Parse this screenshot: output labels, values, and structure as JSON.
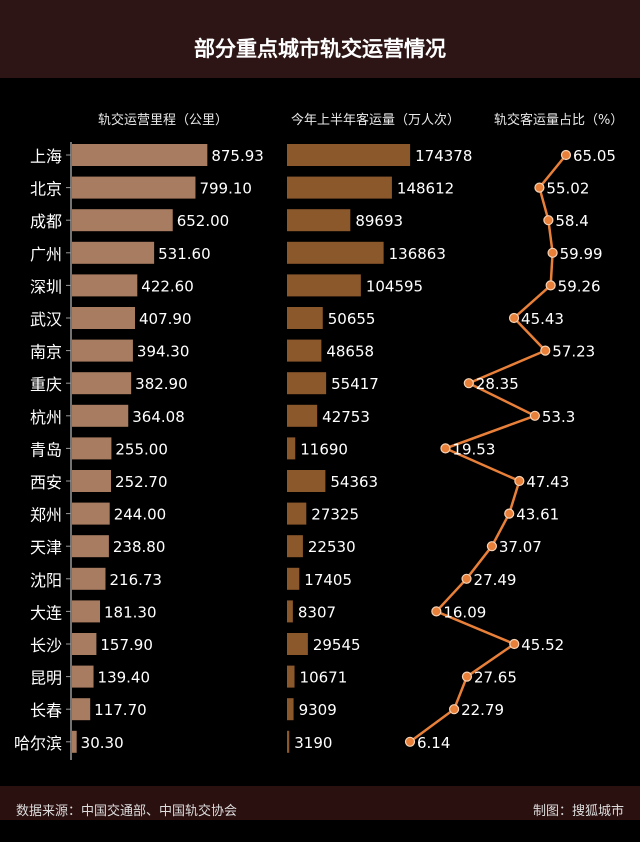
{
  "header": {
    "title": "部分重点城市轨交运营情况"
  },
  "footer": {
    "source": "数据来源：中国交通部、中国轨交协会",
    "credit": "制图：搜狐城市"
  },
  "colors": {
    "header_bg": "#2d1515",
    "mileage_bar": "#a87c60",
    "ridership_bar": "#8b582c",
    "share_line": "#e8803a"
  },
  "chart_data": [
    {
      "type": "bar",
      "orientation": "horizontal",
      "title": "轨交运营里程（公里）",
      "categories": [
        "上海",
        "北京",
        "成都",
        "广州",
        "深圳",
        "武汉",
        "南京",
        "重庆",
        "杭州",
        "青岛",
        "西安",
        "郑州",
        "天津",
        "沈阳",
        "大连",
        "长沙",
        "昆明",
        "长春",
        "哈尔滨"
      ],
      "values": [
        875.93,
        799.1,
        652.0,
        531.6,
        422.6,
        407.9,
        394.3,
        382.9,
        364.08,
        255.0,
        252.7,
        244.0,
        238.8,
        216.73,
        181.3,
        157.9,
        139.4,
        117.7,
        30.3
      ],
      "labels": [
        "875.93",
        "799.10",
        "652.00",
        "531.60",
        "422.60",
        "407.90",
        "394.30",
        "382.90",
        "364.08",
        "255.00",
        "252.70",
        "244.00",
        "238.80",
        "216.73",
        "181.30",
        "157.90",
        "139.40",
        "117.70",
        "30.30"
      ]
    },
    {
      "type": "bar",
      "orientation": "horizontal",
      "title": "今年上半年客运量（万人次）",
      "values": [
        174378,
        148612,
        89693,
        136863,
        104595,
        50655,
        48658,
        55417,
        42753,
        11690,
        54363,
        27325,
        22530,
        17405,
        8307,
        29545,
        10671,
        9309,
        3190
      ]
    },
    {
      "type": "line",
      "title": "轨交客运量占比（%）",
      "values": [
        65.05,
        55.02,
        58.4,
        59.99,
        59.26,
        45.43,
        57.23,
        28.35,
        53.3,
        19.53,
        47.43,
        43.61,
        37.07,
        27.49,
        16.09,
        45.52,
        27.65,
        22.79,
        6.14
      ],
      "labels": [
        "65.05",
        "55.02",
        "58.4",
        "59.99",
        "59.26",
        "45.43",
        "57.23",
        "28.35",
        "53.3",
        "19.53",
        "47.43",
        "43.61",
        "37.07",
        "27.49",
        "16.09",
        "45.52",
        "27.65",
        "22.79",
        "6.14"
      ]
    }
  ]
}
